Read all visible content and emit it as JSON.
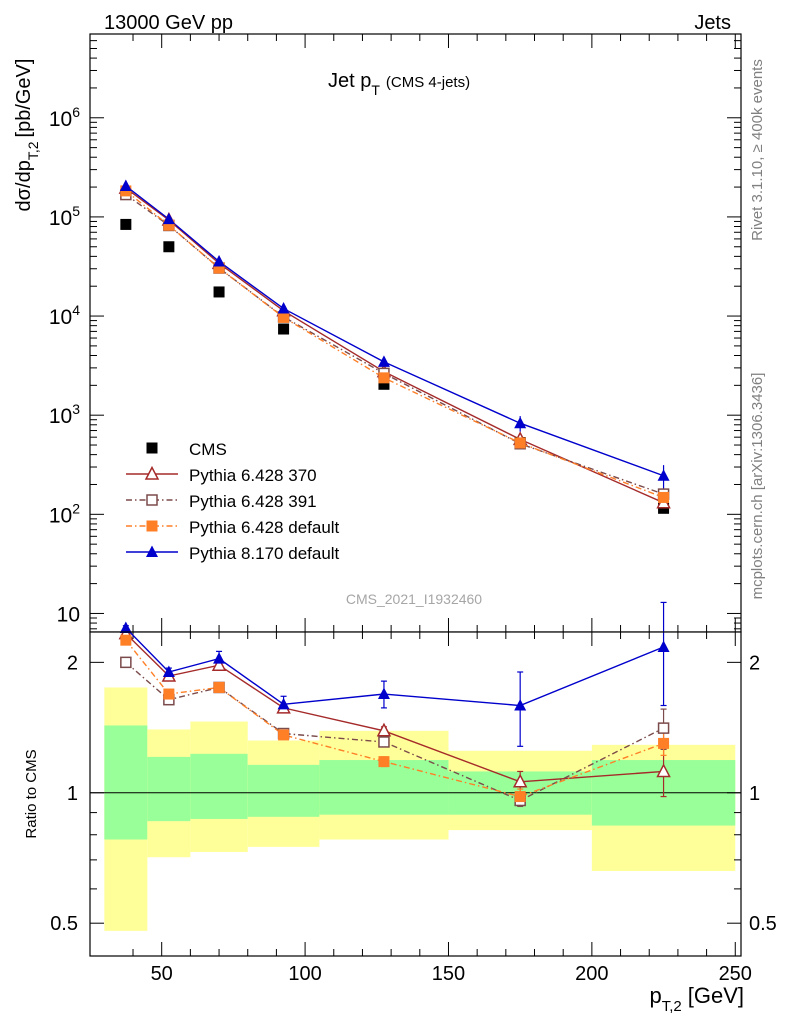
{
  "header": {
    "left": "13000 GeV pp",
    "right": "Jets"
  },
  "side_labels": {
    "top": "Rivet 3.1.10, ≥ 400k events",
    "bottom": "mcplots.cern.ch [arXiv:1306.3436]"
  },
  "chart_data": [
    {
      "type": "scatter",
      "title_main": "Jet p",
      "title_sub": "T",
      "title_note": "(CMS 4-jets)",
      "watermark": "CMS_2021_I1932460",
      "ylabel_main": "dσ/dp",
      "ylabel_sub": "T,2",
      "ylabel_unit": "[pb/GeV]",
      "yscale": "log",
      "ylim": [
        6.5,
        7000000
      ],
      "xlim": [
        25,
        252
      ],
      "ytick_labels": [
        {
          "value": 10,
          "label": "10"
        },
        {
          "value": 100,
          "label": "10",
          "exp": "2"
        },
        {
          "value": 1000,
          "label": "10",
          "exp": "3"
        },
        {
          "value": 10000,
          "label": "10",
          "exp": "4"
        },
        {
          "value": 100000,
          "label": "10",
          "exp": "5"
        },
        {
          "value": 1000000,
          "label": "10",
          "exp": "6"
        }
      ],
      "x": [
        37.5,
        52.5,
        70,
        92.5,
        127.5,
        175,
        225
      ],
      "series": [
        {
          "name": "CMS",
          "color": "#000000",
          "marker": "square-filled",
          "line": "none",
          "values": [
            84000,
            50000,
            17500,
            7400,
            2050,
            530,
            115
          ]
        },
        {
          "name": "Pythia 6.428 370",
          "color": "#a52a2a",
          "marker": "triangle-open",
          "line": "solid",
          "values": [
            195000,
            93000,
            34000,
            11300,
            2750,
            570,
            131
          ]
        },
        {
          "name": "Pythia 6.428 391",
          "color": "#7b4a4a",
          "marker": "square-open",
          "line": "dashdot",
          "values": [
            168000,
            82000,
            30500,
            9800,
            2640,
            515,
            160
          ]
        },
        {
          "name": "Pythia 6.428 default",
          "color": "#ff7f27",
          "marker": "square-filled",
          "line": "dashdot",
          "values": [
            183000,
            82500,
            30500,
            9700,
            2380,
            525,
            148
          ]
        },
        {
          "name": "Pythia 8.170 default",
          "color": "#0000cc",
          "marker": "triangle-filled",
          "line": "solid",
          "values": [
            205000,
            95000,
            35500,
            11900,
            3450,
            830,
            245
          ]
        }
      ],
      "legend_position": "bottom-left"
    },
    {
      "type": "scatter",
      "ylabel": "Ratio to CMS",
      "xlabel_main": "p",
      "xlabel_sub": "T,2",
      "xlabel_unit": "[GeV]",
      "yscale": "log",
      "ylim": [
        0.42,
        2.35
      ],
      "xlim": [
        25,
        252
      ],
      "xticks": [
        50,
        100,
        150,
        200,
        250
      ],
      "ytick_labels": [
        {
          "value": 0.5,
          "label": "0.5"
        },
        {
          "value": 1,
          "label": "1"
        },
        {
          "value": 2,
          "label": "2"
        }
      ],
      "x": [
        37.5,
        52.5,
        70,
        92.5,
        127.5,
        175,
        225
      ],
      "reference": 1,
      "bands": {
        "edges": [
          30,
          45,
          60,
          80,
          105,
          150,
          200,
          250
        ],
        "inner": [
          [
            0.78,
            1.43
          ],
          [
            0.86,
            1.21
          ],
          [
            0.87,
            1.23
          ],
          [
            0.88,
            1.16
          ],
          [
            0.89,
            1.19
          ],
          [
            0.89,
            1.12
          ],
          [
            0.84,
            1.19
          ]
        ],
        "outer": [
          [
            0.48,
            1.75
          ],
          [
            0.71,
            1.4
          ],
          [
            0.73,
            1.46
          ],
          [
            0.75,
            1.32
          ],
          [
            0.78,
            1.39
          ],
          [
            0.82,
            1.25
          ],
          [
            0.66,
            1.29
          ]
        ]
      },
      "series": [
        {
          "name": "Pythia 6.428 370",
          "values": [
            2.33,
            1.86,
            1.97,
            1.57,
            1.39,
            1.06,
            1.12
          ],
          "errors": [
            0.03,
            0.03,
            0.03,
            0.03,
            0.03,
            0.06,
            0.14
          ]
        },
        {
          "name": "Pythia 6.428 391",
          "values": [
            2.0,
            1.64,
            1.75,
            1.37,
            1.31,
            0.96,
            1.41
          ],
          "errors": [
            0.02,
            0.02,
            0.02,
            0.02,
            0.02,
            0.03,
            0.15
          ]
        },
        {
          "name": "Pythia 6.428 default",
          "values": [
            2.25,
            1.69,
            1.75,
            1.36,
            1.18,
            0.98,
            1.3
          ],
          "errors": [
            0.02,
            0.02,
            0.02,
            0.02,
            0.03,
            0.04,
            0.08
          ]
        },
        {
          "name": "Pythia 8.170 default",
          "values": [
            2.4,
            1.9,
            2.04,
            1.6,
            1.69,
            1.59,
            2.17
          ],
          "errors": [
            0.03,
            0.04,
            0.08,
            0.07,
            0.12,
            0.31,
            0.58
          ]
        }
      ]
    }
  ]
}
